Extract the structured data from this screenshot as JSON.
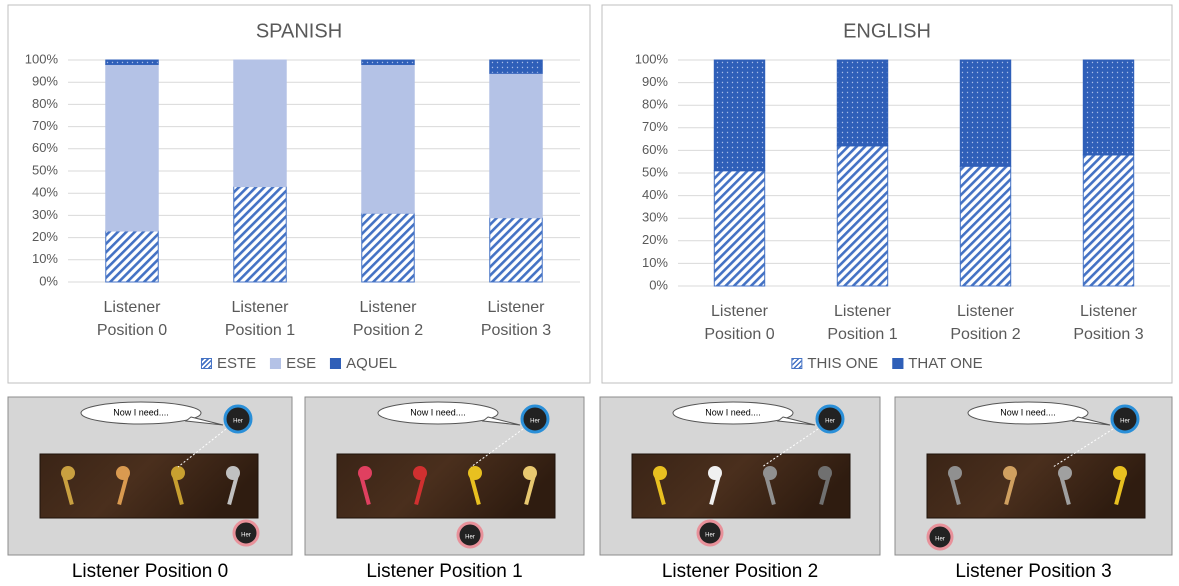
{
  "chart_data": [
    {
      "type": "bar",
      "stacked": true,
      "title": "SPANISH",
      "categories": [
        "Listener Position 0",
        "Listener Position 1",
        "Listener Position 2",
        "Listener Position 3"
      ],
      "series": [
        {
          "name": "ESTE",
          "color": "#4472c4",
          "pattern": "hatch",
          "values": [
            23,
            43,
            31,
            29
          ]
        },
        {
          "name": "ESE",
          "color": "#b4c2e6",
          "pattern": "solid",
          "values": [
            75,
            57,
            67,
            65
          ]
        },
        {
          "name": "AQUEL",
          "color": "#2f5fb8",
          "pattern": "dots",
          "values": [
            2,
            0,
            2,
            6
          ]
        }
      ],
      "ylim": [
        0,
        100
      ],
      "yticks": [
        {
          "value": 0,
          "label": "0%"
        },
        {
          "value": 10,
          "label": "10%"
        },
        {
          "value": 20,
          "label": "20%"
        },
        {
          "value": 30,
          "label": "30%"
        },
        {
          "value": 40,
          "label": "40%"
        },
        {
          "value": 50,
          "label": "50%"
        },
        {
          "value": 60,
          "label": "60%"
        },
        {
          "value": 70,
          "label": "70%"
        },
        {
          "value": 80,
          "label": "80%"
        },
        {
          "value": 90,
          "label": "90%"
        },
        {
          "value": 100,
          "label": "100%"
        }
      ],
      "grid": true,
      "legend": "bottom"
    },
    {
      "type": "bar",
      "stacked": true,
      "title": "ENGLISH",
      "categories": [
        "Listener Position 0",
        "Listener Position 1",
        "Listener Position 2",
        "Listener Position 3"
      ],
      "series": [
        {
          "name": "THIS ONE",
          "color": "#4472c4",
          "pattern": "hatch",
          "values": [
            51,
            62,
            53,
            58
          ]
        },
        {
          "name": "THAT ONE",
          "color": "#2f5fb8",
          "pattern": "dots",
          "values": [
            49,
            38,
            47,
            42
          ]
        }
      ],
      "ylim": [
        0,
        100
      ],
      "yticks": [
        {
          "value": 0,
          "label": "0%"
        },
        {
          "value": 10,
          "label": "10%"
        },
        {
          "value": 20,
          "label": "20%"
        },
        {
          "value": 30,
          "label": "30%"
        },
        {
          "value": 40,
          "label": "40%"
        },
        {
          "value": 50,
          "label": "50%"
        },
        {
          "value": 60,
          "label": "60%"
        },
        {
          "value": 70,
          "label": "70%"
        },
        {
          "value": 80,
          "label": "80%"
        },
        {
          "value": 90,
          "label": "90%"
        },
        {
          "value": 100,
          "label": "100%"
        }
      ],
      "grid": true,
      "legend": "bottom"
    }
  ],
  "scenes": [
    {
      "bubble": "Now I need....",
      "speaker": "Her",
      "listener": "Her",
      "caption": "Listener Position 0"
    },
    {
      "bubble": "Now I need....",
      "speaker": "Her",
      "listener": "Her",
      "caption": "Listener Position 1"
    },
    {
      "bubble": "Now I need....",
      "speaker": "Her",
      "listener": "Her",
      "caption": "Listener Position 2"
    },
    {
      "bubble": "Now I need....",
      "speaker": "Her",
      "listener": "Her",
      "caption": "Listener Position 3"
    }
  ]
}
